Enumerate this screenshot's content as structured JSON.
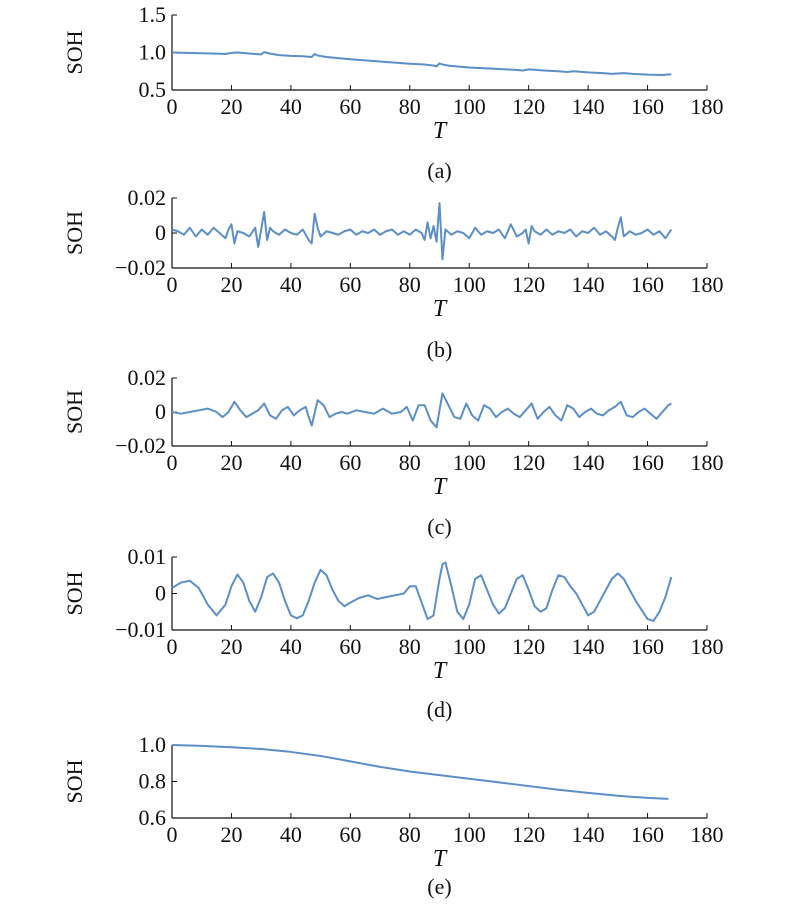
{
  "colors": {
    "line": "#5b8fc6",
    "axis": "#111111",
    "text": "#111111"
  },
  "chart_data": [
    {
      "type": "line",
      "caption": "(a)",
      "xlabel": "T",
      "ylabel": "SOH",
      "xlim": [
        0,
        180
      ],
      "ylim": [
        0.5,
        1.5
      ],
      "xticks": [
        "0",
        "20",
        "40",
        "60",
        "80",
        "100",
        "120",
        "140",
        "160",
        "180"
      ],
      "yticks": [
        "0.5",
        "1.0",
        "1.5"
      ],
      "series": [
        {
          "x": [
            0,
            5,
            10,
            15,
            18,
            20,
            22,
            25,
            28,
            30,
            31,
            33,
            36,
            40,
            44,
            47,
            48,
            49,
            52,
            56,
            60,
            65,
            70,
            75,
            80,
            85,
            88,
            89,
            90,
            91,
            93,
            97,
            100,
            105,
            110,
            115,
            118,
            120,
            122,
            125,
            130,
            133,
            135,
            140,
            145,
            148,
            150,
            152,
            155,
            160,
            165,
            168
          ],
          "y": [
            1.0,
            0.995,
            0.99,
            0.985,
            0.98,
            0.995,
            1.0,
            0.99,
            0.98,
            0.975,
            1.005,
            0.985,
            0.965,
            0.955,
            0.95,
            0.94,
            0.98,
            0.96,
            0.94,
            0.925,
            0.91,
            0.895,
            0.88,
            0.865,
            0.85,
            0.84,
            0.825,
            0.815,
            0.855,
            0.84,
            0.825,
            0.81,
            0.8,
            0.79,
            0.78,
            0.77,
            0.76,
            0.775,
            0.77,
            0.76,
            0.75,
            0.74,
            0.75,
            0.735,
            0.725,
            0.715,
            0.72,
            0.725,
            0.715,
            0.705,
            0.7,
            0.71
          ]
        }
      ]
    },
    {
      "type": "line",
      "caption": "(b)",
      "xlabel": "T",
      "ylabel": "SOH",
      "xlim": [
        0,
        180
      ],
      "ylim": [
        -0.02,
        0.02
      ],
      "xticks": [
        "0",
        "20",
        "40",
        "60",
        "80",
        "100",
        "120",
        "140",
        "160",
        "180"
      ],
      "yticks": [
        "−0.02",
        "0",
        "0.02"
      ],
      "series": [
        {
          "x": [
            0,
            2,
            4,
            6,
            8,
            10,
            12,
            14,
            16,
            18,
            19,
            20,
            21,
            22,
            24,
            26,
            28,
            29,
            30,
            31,
            32,
            33,
            34,
            36,
            38,
            40,
            42,
            44,
            46,
            47,
            48,
            49,
            50,
            52,
            54,
            56,
            58,
            60,
            62,
            64,
            66,
            68,
            70,
            72,
            74,
            76,
            78,
            80,
            82,
            84,
            85,
            86,
            87,
            88,
            89,
            90,
            91,
            92,
            94,
            96,
            98,
            100,
            102,
            104,
            106,
            108,
            110,
            112,
            114,
            116,
            118,
            119,
            120,
            121,
            122,
            124,
            126,
            128,
            130,
            132,
            134,
            136,
            138,
            140,
            142,
            144,
            146,
            148,
            149,
            150,
            151,
            152,
            154,
            156,
            158,
            160,
            162,
            164,
            166,
            168
          ],
          "y": [
            0.002,
            0.001,
            -0.001,
            0.003,
            -0.002,
            0.002,
            -0.001,
            0.003,
            0.0,
            -0.003,
            0.002,
            0.005,
            -0.006,
            0.001,
            0.0,
            -0.002,
            0.003,
            -0.008,
            0.002,
            0.012,
            -0.004,
            0.003,
            0.001,
            -0.001,
            0.002,
            0.0,
            -0.001,
            0.002,
            -0.004,
            -0.006,
            0.011,
            0.003,
            -0.002,
            0.001,
            0.0,
            -0.001,
            0.001,
            0.002,
            -0.001,
            0.001,
            0.0,
            0.002,
            -0.001,
            0.001,
            0.002,
            -0.001,
            0.001,
            -0.001,
            0.002,
            0.0,
            -0.004,
            0.006,
            -0.003,
            0.004,
            -0.005,
            0.017,
            -0.015,
            0.002,
            -0.001,
            0.001,
            0.0,
            -0.003,
            0.003,
            -0.001,
            0.001,
            0.0,
            0.002,
            -0.003,
            0.005,
            -0.002,
            0.0,
            0.002,
            -0.006,
            0.004,
            0.001,
            -0.001,
            0.002,
            -0.001,
            0.001,
            0.0,
            0.002,
            -0.002,
            0.001,
            0.0,
            0.003,
            -0.001,
            0.001,
            -0.002,
            -0.004,
            0.003,
            0.009,
            -0.002,
            0.001,
            -0.001,
            0.0,
            0.002,
            -0.001,
            0.001,
            -0.003,
            0.002
          ]
        }
      ]
    },
    {
      "type": "line",
      "caption": "(c)",
      "xlabel": "T",
      "ylabel": "SOH",
      "xlim": [
        0,
        180
      ],
      "ylim": [
        -0.02,
        0.02
      ],
      "xticks": [
        "0",
        "20",
        "40",
        "60",
        "80",
        "100",
        "120",
        "140",
        "160",
        "180"
      ],
      "yticks": [
        "−0.02",
        "0",
        "0.02"
      ],
      "series": [
        {
          "x": [
            0,
            3,
            6,
            9,
            12,
            15,
            17,
            19,
            21,
            23,
            25,
            27,
            29,
            31,
            33,
            35,
            37,
            39,
            41,
            43,
            45,
            46,
            47,
            49,
            51,
            53,
            55,
            57,
            59,
            62,
            65,
            68,
            71,
            74,
            77,
            79,
            81,
            83,
            85,
            87,
            89,
            91,
            93,
            95,
            97,
            99,
            101,
            103,
            105,
            107,
            109,
            111,
            113,
            115,
            117,
            119,
            121,
            123,
            125,
            127,
            129,
            131,
            133,
            135,
            137,
            139,
            141,
            143,
            145,
            147,
            149,
            151,
            153,
            155,
            157,
            159,
            161,
            163,
            165,
            167,
            168
          ],
          "y": [
            0.0,
            -0.001,
            0.0,
            0.001,
            0.002,
            0.0,
            -0.003,
            0.0,
            0.006,
            0.001,
            -0.003,
            -0.001,
            0.001,
            0.005,
            -0.002,
            -0.004,
            0.001,
            0.003,
            -0.002,
            0.001,
            0.003,
            -0.003,
            -0.008,
            0.007,
            0.004,
            -0.003,
            -0.001,
            0.0,
            -0.001,
            0.001,
            0.0,
            -0.001,
            0.002,
            -0.001,
            0.0,
            0.003,
            -0.005,
            0.004,
            0.004,
            -0.005,
            -0.009,
            0.011,
            0.004,
            -0.003,
            -0.004,
            0.005,
            -0.002,
            -0.005,
            0.004,
            0.002,
            -0.003,
            0.0,
            0.002,
            -0.001,
            -0.003,
            0.001,
            0.005,
            -0.004,
            0.0,
            0.003,
            -0.002,
            -0.005,
            0.004,
            0.002,
            -0.003,
            0.0,
            0.002,
            -0.001,
            -0.002,
            0.001,
            0.003,
            0.006,
            -0.002,
            -0.003,
            0.0,
            0.002,
            -0.001,
            -0.004,
            0.0,
            0.004,
            0.005
          ]
        }
      ]
    },
    {
      "type": "line",
      "caption": "(d)",
      "xlabel": "T",
      "ylabel": "SOH",
      "xlim": [
        0,
        180
      ],
      "ylim": [
        -0.01,
        0.01
      ],
      "xticks": [
        "0",
        "20",
        "40",
        "60",
        "80",
        "100",
        "120",
        "140",
        "160",
        "180"
      ],
      "yticks": [
        "−0.01",
        "0",
        "0.01"
      ],
      "series": [
        {
          "x": [
            0,
            3,
            6,
            9,
            12,
            15,
            18,
            20,
            22,
            24,
            26,
            28,
            30,
            32,
            34,
            36,
            38,
            40,
            42,
            44,
            46,
            48,
            50,
            52,
            54,
            56,
            58,
            60,
            63,
            66,
            69,
            72,
            75,
            78,
            80,
            82,
            84,
            86,
            88,
            90,
            91,
            92,
            94,
            96,
            98,
            100,
            102,
            104,
            106,
            108,
            110,
            112,
            114,
            116,
            118,
            120,
            122,
            124,
            126,
            128,
            130,
            132,
            134,
            136,
            138,
            140,
            142,
            144,
            146,
            148,
            150,
            152,
            154,
            156,
            158,
            160,
            162,
            164,
            166,
            168
          ],
          "y": [
            0.0015,
            0.003,
            0.0035,
            0.0015,
            -0.003,
            -0.006,
            -0.003,
            0.002,
            0.0052,
            0.003,
            -0.002,
            -0.005,
            -0.001,
            0.0045,
            0.0055,
            0.003,
            -0.002,
            -0.006,
            -0.0068,
            -0.006,
            -0.002,
            0.003,
            0.0065,
            0.005,
            0.001,
            -0.002,
            -0.0035,
            -0.0025,
            -0.0012,
            -0.0005,
            -0.0015,
            -0.001,
            -0.0005,
            0.0,
            0.002,
            0.002,
            -0.0025,
            -0.007,
            -0.006,
            0.004,
            0.008,
            0.0085,
            0.002,
            -0.005,
            -0.007,
            -0.003,
            0.004,
            0.005,
            0.001,
            -0.003,
            -0.0055,
            -0.004,
            0.0,
            0.004,
            0.005,
            0.001,
            -0.0035,
            -0.005,
            -0.004,
            0.001,
            0.005,
            0.0045,
            0.002,
            0.0,
            -0.003,
            -0.006,
            -0.005,
            -0.002,
            0.001,
            0.004,
            0.0055,
            0.004,
            0.001,
            -0.002,
            -0.0045,
            -0.007,
            -0.0075,
            -0.005,
            -0.001,
            0.0045
          ]
        }
      ]
    },
    {
      "type": "line",
      "caption": "(e)",
      "xlabel": "T",
      "ylabel": "SOH",
      "xlim": [
        0,
        180
      ],
      "ylim": [
        0.6,
        1.0
      ],
      "xticks": [
        "0",
        "20",
        "40",
        "60",
        "80",
        "100",
        "120",
        "140",
        "160",
        "180"
      ],
      "yticks": [
        "0.6",
        "0.8",
        "1.0"
      ],
      "series": [
        {
          "x": [
            0,
            10,
            20,
            30,
            40,
            50,
            60,
            70,
            80,
            90,
            100,
            110,
            120,
            130,
            140,
            150,
            160,
            167
          ],
          "y": [
            1.0,
            0.995,
            0.988,
            0.978,
            0.962,
            0.94,
            0.91,
            0.88,
            0.855,
            0.835,
            0.815,
            0.795,
            0.775,
            0.755,
            0.738,
            0.722,
            0.71,
            0.705
          ]
        }
      ]
    }
  ]
}
